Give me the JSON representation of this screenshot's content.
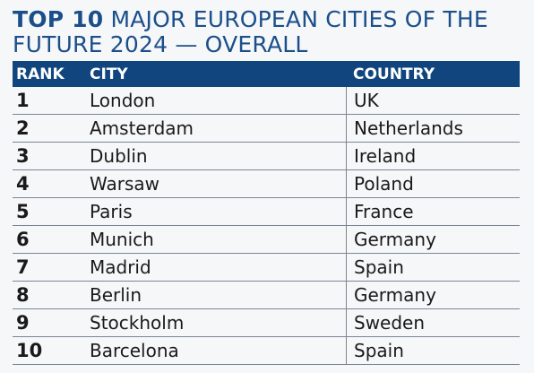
{
  "title": {
    "bold": "TOP 10",
    "rest": " MAJOR EUROPEAN CITIES OF THE FUTURE 2024 — OVERALL"
  },
  "headers": {
    "rank": "RANK",
    "city": "CITY",
    "country": "COUNTRY"
  },
  "rows": [
    {
      "rank": "1",
      "city": "London",
      "country": "UK"
    },
    {
      "rank": "2",
      "city": "Amsterdam",
      "country": "Netherlands"
    },
    {
      "rank": "3",
      "city": "Dublin",
      "country": "Ireland"
    },
    {
      "rank": "4",
      "city": "Warsaw",
      "country": "Poland"
    },
    {
      "rank": "5",
      "city": "Paris",
      "country": "France"
    },
    {
      "rank": "6",
      "city": "Munich",
      "country": "Germany"
    },
    {
      "rank": "7",
      "city": "Madrid",
      "country": "Spain"
    },
    {
      "rank": "8",
      "city": "Berlin",
      "country": "Germany"
    },
    {
      "rank": "9",
      "city": "Stockholm",
      "country": "Sweden"
    },
    {
      "rank": "10",
      "city": "Barcelona",
      "country": "Spain"
    }
  ],
  "colors": {
    "title": "#1b4f8a",
    "header_bg": "#11457d",
    "rule": "#7a8594"
  }
}
